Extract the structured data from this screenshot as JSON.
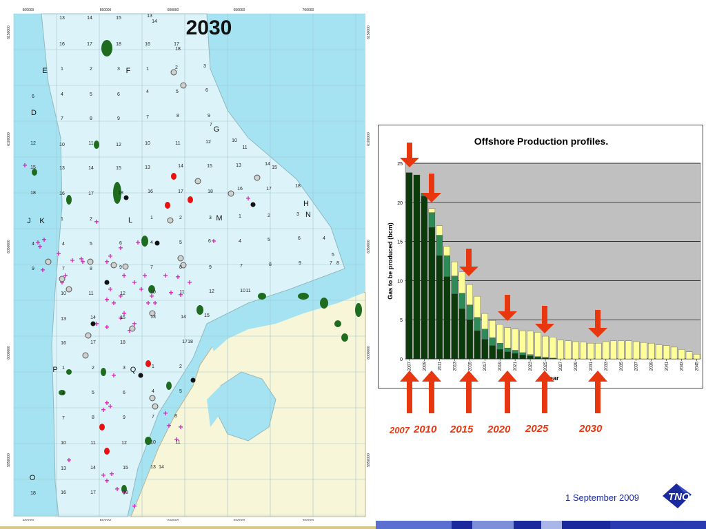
{
  "map": {
    "title": "2030",
    "top_ticks": [
      "500000",
      "550000",
      "600000",
      "650000",
      "700000"
    ],
    "bottom_ticks": [
      "500000",
      "550000",
      "600000",
      "650000",
      "700000"
    ],
    "right_ticks": [
      "6150000",
      "6100000",
      "6050000",
      "6000000",
      "5950000",
      "5900000"
    ],
    "left_ticks": [
      "6150000",
      "6100000",
      "6050000",
      "6000000",
      "5950000",
      "5900000"
    ],
    "quadrant_letters": [
      "E",
      "F",
      "D",
      "G",
      "H",
      "J",
      "K",
      "L",
      "M",
      "N",
      "P",
      "Q",
      "O"
    ],
    "colors": {
      "sea": "#a6e3f2",
      "ncp": "#dcf4f9",
      "land": "#f7f6d8",
      "field": "#1f6b1f",
      "plus": "#e020c0"
    }
  },
  "chart_data": {
    "type": "bar",
    "title": "Offshore Production profiles.",
    "xlabel": "Year",
    "ylabel": "Gas to be produced (bcm)",
    "ylim": [
      0,
      25
    ],
    "yticks": [
      "0",
      "5",
      "10",
      "15",
      "20",
      "25"
    ],
    "x_tick_labels": [
      "2007",
      "2009",
      "2011",
      "2013",
      "2015",
      "2017",
      "2019",
      "2021",
      "2023",
      "2025",
      "2027",
      "2029",
      "2031",
      "2033",
      "2035",
      "2037",
      "2039",
      "2041",
      "2043",
      "2045"
    ],
    "categories": [
      2007,
      2008,
      2009,
      2010,
      2011,
      2012,
      2013,
      2014,
      2015,
      2016,
      2017,
      2018,
      2019,
      2020,
      2021,
      2022,
      2023,
      2024,
      2025,
      2026,
      2027,
      2028,
      2029,
      2030,
      2031,
      2032,
      2033,
      2034,
      2035,
      2036,
      2037,
      2038,
      2039,
      2040,
      2041,
      2042,
      2043,
      2044,
      2045
    ],
    "series": [
      {
        "color": "#0b3a0b",
        "values": [
          23.8,
          23.5,
          20.8,
          16.8,
          13.2,
          10.5,
          8.3,
          6.4,
          5.0,
          3.6,
          2.5,
          1.7,
          1.2,
          0.9,
          0.7,
          0.5,
          0.35,
          0.2,
          0.1,
          0.05,
          0,
          0,
          0,
          0,
          0,
          0,
          0,
          0,
          0,
          0,
          0,
          0,
          0,
          0,
          0,
          0,
          0,
          0,
          0
        ]
      },
      {
        "color": "#2e8b57",
        "values": [
          0,
          0,
          0.4,
          1.9,
          2.6,
          2.7,
          2.3,
          2.0,
          1.9,
          1.7,
          1.3,
          1.0,
          0.8,
          0.5,
          0.4,
          0.3,
          0.2,
          0.1,
          0.1,
          0.05,
          0,
          0,
          0,
          0,
          0,
          0,
          0,
          0,
          0,
          0,
          0,
          0,
          0,
          0,
          0,
          0,
          0,
          0,
          0
        ]
      },
      {
        "color": "#ffff99",
        "values": [
          0,
          0,
          0,
          0.5,
          1.2,
          1.2,
          1.8,
          2.7,
          2.6,
          2.7,
          2.0,
          2.2,
          2.4,
          2.6,
          2.7,
          2.8,
          3.0,
          3.1,
          2.7,
          2.7,
          2.4,
          2.3,
          2.2,
          2.15,
          2.0,
          2.0,
          2.2,
          2.3,
          2.3,
          2.3,
          2.2,
          2.1,
          2.0,
          1.8,
          1.7,
          1.5,
          1.2,
          0.9,
          0.6
        ]
      }
    ],
    "grid": true,
    "plot_background": "#c0c0c0"
  },
  "milestones": {
    "labels": [
      "2007",
      "2010",
      "2015",
      "2020",
      "2025",
      "2030"
    ],
    "color": "#e8360f"
  },
  "footer": {
    "date": "1 September 2009",
    "logo_text": "TNO"
  }
}
